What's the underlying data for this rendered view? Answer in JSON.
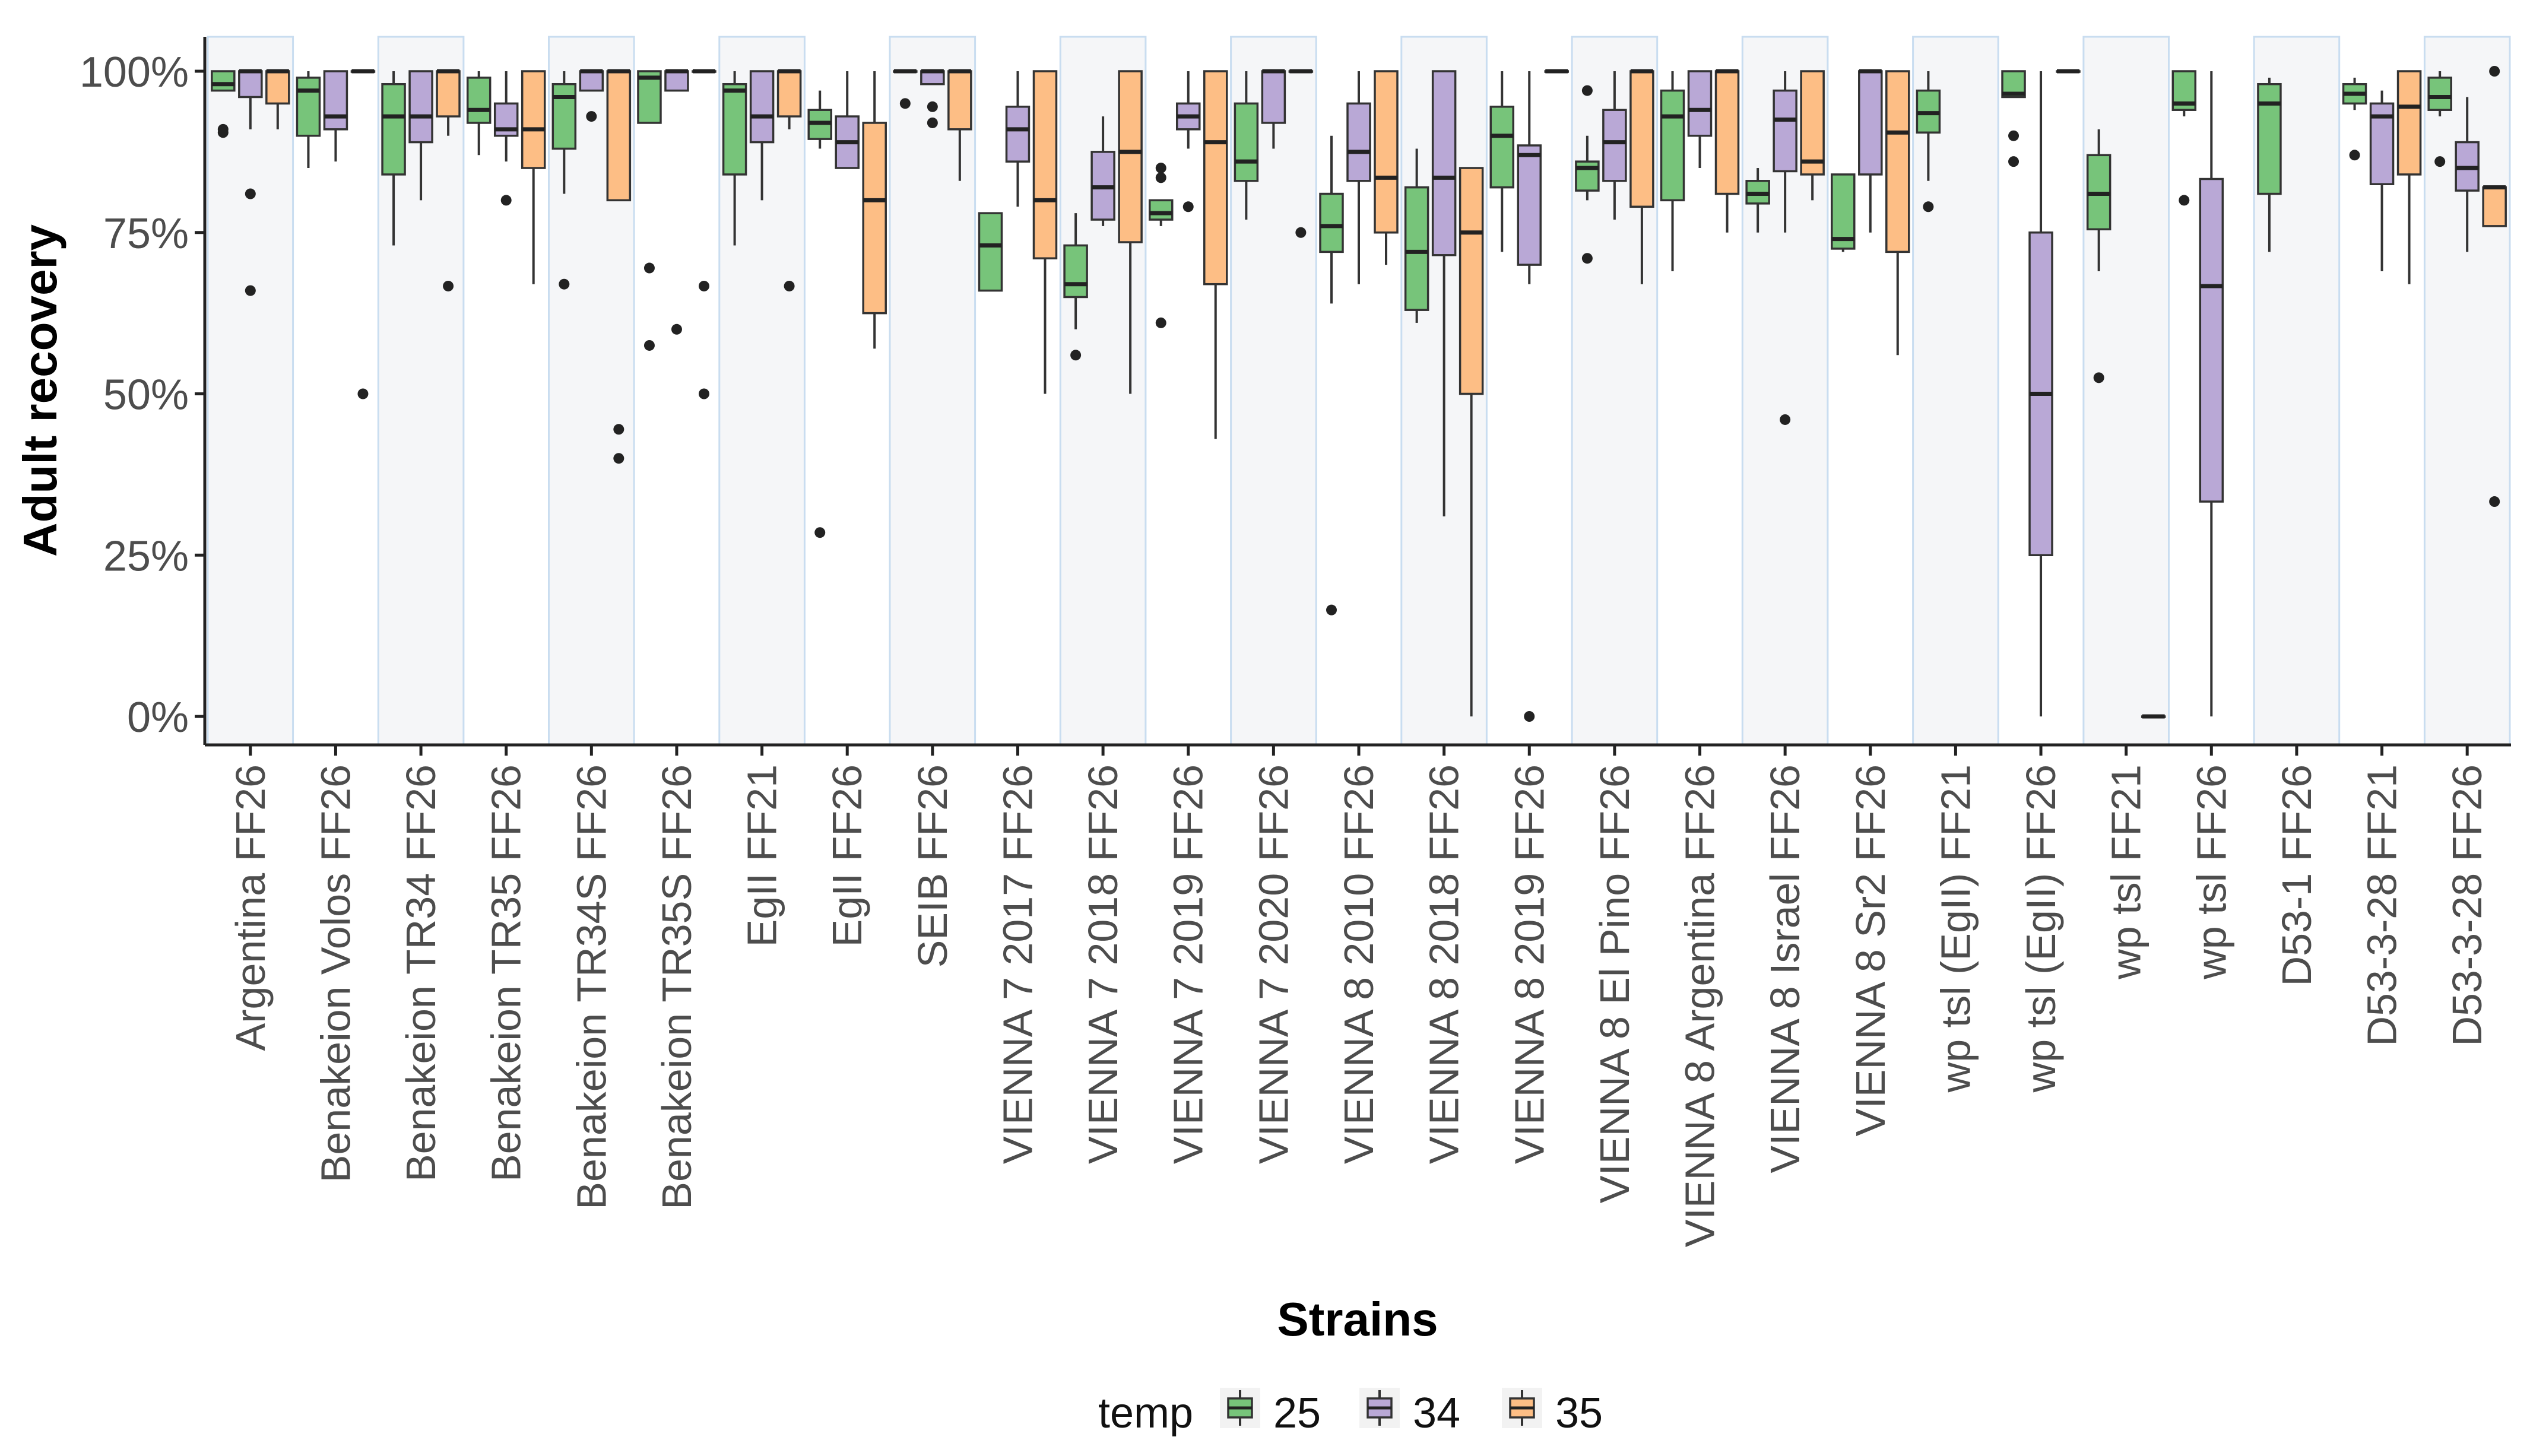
{
  "chart_data": {
    "type": "boxplot",
    "title": "",
    "xlabel": "Strains",
    "ylabel": "Adult recovery",
    "ylim": [
      0,
      100
    ],
    "y_ticks": [
      {
        "value": 0,
        "label": "0%"
      },
      {
        "value": 25,
        "label": "25%"
      },
      {
        "value": 50,
        "label": "50%"
      },
      {
        "value": 75,
        "label": "75%"
      },
      {
        "value": 100,
        "label": "100%"
      }
    ],
    "legend": {
      "title": "temp",
      "position": "bottom",
      "entries": [
        {
          "key": "25",
          "label": "25",
          "color": "#77C47A"
        },
        {
          "key": "34",
          "label": "34",
          "color": "#B9A8D6"
        },
        {
          "key": "35",
          "label": "35",
          "color": "#FDBE85"
        }
      ]
    },
    "categories": [
      {
        "label": "Argentina FF26",
        "boxes": [
          {
            "temp": "25",
            "wlo": 97,
            "q1": 97,
            "median": 98,
            "q3": 100,
            "whi": 100,
            "outliers": [
              91,
              90.5
            ]
          },
          {
            "temp": "34",
            "wlo": 91,
            "q1": 96,
            "median": 100,
            "q3": 100,
            "whi": 100,
            "outliers": [
              81,
              66
            ]
          },
          {
            "temp": "35",
            "wlo": 91,
            "q1": 95,
            "median": 100,
            "q3": 100,
            "whi": 100,
            "outliers": []
          }
        ]
      },
      {
        "label": "Benakeion Volos FF26",
        "boxes": [
          {
            "temp": "25",
            "wlo": 85,
            "q1": 90,
            "median": 97,
            "q3": 99,
            "whi": 100,
            "outliers": []
          },
          {
            "temp": "34",
            "wlo": 86,
            "q1": 91,
            "median": 93,
            "q3": 100,
            "whi": 100,
            "outliers": []
          },
          {
            "temp": "35",
            "wlo": 100,
            "q1": 100,
            "median": 100,
            "q3": 100,
            "whi": 100,
            "outliers": [
              50
            ]
          }
        ]
      },
      {
        "label": "Benakeion TR34 FF26",
        "boxes": [
          {
            "temp": "25",
            "wlo": 73,
            "q1": 84,
            "median": 93,
            "q3": 98,
            "whi": 100,
            "outliers": []
          },
          {
            "temp": "34",
            "wlo": 80,
            "q1": 89,
            "median": 93,
            "q3": 100,
            "whi": 100,
            "outliers": []
          },
          {
            "temp": "35",
            "wlo": 90,
            "q1": 93,
            "median": 100,
            "q3": 100,
            "whi": 100,
            "outliers": [
              66.7
            ]
          }
        ]
      },
      {
        "label": "Benakeion TR35 FF26",
        "boxes": [
          {
            "temp": "25",
            "wlo": 87,
            "q1": 92,
            "median": 94,
            "q3": 99,
            "whi": 100,
            "outliers": []
          },
          {
            "temp": "34",
            "wlo": 86,
            "q1": 90,
            "median": 91,
            "q3": 95,
            "whi": 100,
            "outliers": [
              80
            ]
          },
          {
            "temp": "35",
            "wlo": 67,
            "q1": 85,
            "median": 91,
            "q3": 100,
            "whi": 100,
            "outliers": []
          }
        ]
      },
      {
        "label": "Benakeion TR34S FF26",
        "boxes": [
          {
            "temp": "25",
            "wlo": 81,
            "q1": 88,
            "median": 96,
            "q3": 98,
            "whi": 100,
            "outliers": [
              67
            ]
          },
          {
            "temp": "34",
            "wlo": 97,
            "q1": 97,
            "median": 100,
            "q3": 100,
            "whi": 100,
            "outliers": [
              93
            ]
          },
          {
            "temp": "35",
            "wlo": 80,
            "q1": 80,
            "median": 100,
            "q3": 100,
            "whi": 100,
            "outliers": [
              44.5,
              40
            ]
          }
        ]
      },
      {
        "label": "Benakeion TR35S FF26",
        "boxes": [
          {
            "temp": "25",
            "wlo": 92,
            "q1": 92,
            "median": 99,
            "q3": 100,
            "whi": 100,
            "outliers": [
              69.5,
              57.5
            ]
          },
          {
            "temp": "34",
            "wlo": 97,
            "q1": 97,
            "median": 100,
            "q3": 100,
            "whi": 100,
            "outliers": [
              60
            ]
          },
          {
            "temp": "35",
            "wlo": 100,
            "q1": 100,
            "median": 100,
            "q3": 100,
            "whi": 100,
            "outliers": [
              66.7,
              50
            ]
          }
        ]
      },
      {
        "label": "EgII FF21",
        "boxes": [
          {
            "temp": "25",
            "wlo": 73,
            "q1": 84,
            "median": 97,
            "q3": 98,
            "whi": 100,
            "outliers": []
          },
          {
            "temp": "34",
            "wlo": 80,
            "q1": 89,
            "median": 93,
            "q3": 100,
            "whi": 100,
            "outliers": []
          },
          {
            "temp": "35",
            "wlo": 91,
            "q1": 93,
            "median": 100,
            "q3": 100,
            "whi": 100,
            "outliers": [
              66.7
            ]
          }
        ]
      },
      {
        "label": "EgII FF26",
        "boxes": [
          {
            "temp": "25",
            "wlo": 88,
            "q1": 89.5,
            "median": 92,
            "q3": 94,
            "whi": 97,
            "outliers": [
              28.5
            ]
          },
          {
            "temp": "34",
            "wlo": 85,
            "q1": 85,
            "median": 89,
            "q3": 93,
            "whi": 100,
            "outliers": []
          },
          {
            "temp": "35",
            "wlo": 57,
            "q1": 62.5,
            "median": 80,
            "q3": 92,
            "whi": 100,
            "outliers": []
          }
        ]
      },
      {
        "label": "SEIB FF26",
        "boxes": [
          {
            "temp": "25",
            "wlo": 100,
            "q1": 100,
            "median": 100,
            "q3": 100,
            "whi": 100,
            "outliers": [
              95
            ]
          },
          {
            "temp": "34",
            "wlo": 98,
            "q1": 98,
            "median": 100,
            "q3": 100,
            "whi": 100,
            "outliers": [
              94.5,
              92
            ]
          },
          {
            "temp": "35",
            "wlo": 83,
            "q1": 91,
            "median": 100,
            "q3": 100,
            "whi": 100,
            "outliers": []
          }
        ]
      },
      {
        "label": "VIENNA 7 2017 FF26",
        "boxes": [
          {
            "temp": "25",
            "wlo": 66,
            "q1": 66,
            "median": 73,
            "q3": 78,
            "whi": 78,
            "outliers": []
          },
          {
            "temp": "34",
            "wlo": 79,
            "q1": 86,
            "median": 91,
            "q3": 94.5,
            "whi": 100,
            "outliers": []
          },
          {
            "temp": "35",
            "wlo": 50,
            "q1": 71,
            "median": 80,
            "q3": 100,
            "whi": 100,
            "outliers": []
          }
        ]
      },
      {
        "label": "VIENNA 7 2018 FF26",
        "boxes": [
          {
            "temp": "25",
            "wlo": 60,
            "q1": 65,
            "median": 67,
            "q3": 73,
            "whi": 78,
            "outliers": [
              56
            ]
          },
          {
            "temp": "34",
            "wlo": 76,
            "q1": 77,
            "median": 82,
            "q3": 87.5,
            "whi": 93,
            "outliers": []
          },
          {
            "temp": "35",
            "wlo": 50,
            "q1": 73.5,
            "median": 87.5,
            "q3": 100,
            "whi": 100,
            "outliers": []
          }
        ]
      },
      {
        "label": "VIENNA 7 2019 FF26",
        "boxes": [
          {
            "temp": "25",
            "wlo": 76,
            "q1": 77,
            "median": 78,
            "q3": 80,
            "whi": 80,
            "outliers": [
              85,
              83.5,
              61
            ]
          },
          {
            "temp": "34",
            "wlo": 88,
            "q1": 91,
            "median": 93,
            "q3": 95,
            "whi": 100,
            "outliers": [
              79
            ]
          },
          {
            "temp": "35",
            "wlo": 43,
            "q1": 67,
            "median": 89,
            "q3": 100,
            "whi": 100,
            "outliers": []
          }
        ]
      },
      {
        "label": "VIENNA 7 2020 FF26",
        "boxes": [
          {
            "temp": "25",
            "wlo": 77,
            "q1": 83,
            "median": 86,
            "q3": 95,
            "whi": 100,
            "outliers": []
          },
          {
            "temp": "34",
            "wlo": 88,
            "q1": 92,
            "median": 100,
            "q3": 100,
            "whi": 100,
            "outliers": []
          },
          {
            "temp": "35",
            "wlo": 100,
            "q1": 100,
            "median": 100,
            "q3": 100,
            "whi": 100,
            "outliers": [
              75
            ]
          }
        ]
      },
      {
        "label": "VIENNA 8 2010 FF26",
        "boxes": [
          {
            "temp": "25",
            "wlo": 64,
            "q1": 72,
            "median": 76,
            "q3": 81,
            "whi": 90,
            "outliers": [
              16.5
            ]
          },
          {
            "temp": "34",
            "wlo": 67,
            "q1": 83,
            "median": 87.5,
            "q3": 95,
            "whi": 100,
            "outliers": []
          },
          {
            "temp": "35",
            "wlo": 70,
            "q1": 75,
            "median": 83.5,
            "q3": 100,
            "whi": 100,
            "outliers": []
          }
        ]
      },
      {
        "label": "VIENNA 8 2018 FF26",
        "boxes": [
          {
            "temp": "25",
            "wlo": 61,
            "q1": 63,
            "median": 72,
            "q3": 82,
            "whi": 88,
            "outliers": []
          },
          {
            "temp": "34",
            "wlo": 31,
            "q1": 71.5,
            "median": 83.5,
            "q3": 100,
            "whi": 100,
            "outliers": []
          },
          {
            "temp": "35",
            "wlo": 0,
            "q1": 50,
            "median": 75,
            "q3": 85,
            "whi": 85,
            "outliers": []
          }
        ]
      },
      {
        "label": "VIENNA 8 2019 FF26",
        "boxes": [
          {
            "temp": "25",
            "wlo": 72,
            "q1": 82,
            "median": 90,
            "q3": 94.5,
            "whi": 100,
            "outliers": []
          },
          {
            "temp": "34",
            "wlo": 67,
            "q1": 70,
            "median": 87,
            "q3": 88.5,
            "whi": 100,
            "outliers": [
              0
            ]
          },
          {
            "temp": "35",
            "wlo": 100,
            "q1": 100,
            "median": 100,
            "q3": 100,
            "whi": 100,
            "outliers": []
          }
        ]
      },
      {
        "label": "VIENNA 8 El Pino FF26",
        "boxes": [
          {
            "temp": "25",
            "wlo": 80,
            "q1": 81.5,
            "median": 85,
            "q3": 86,
            "whi": 90,
            "outliers": [
              97,
              71
            ]
          },
          {
            "temp": "34",
            "wlo": 77,
            "q1": 83,
            "median": 89,
            "q3": 94,
            "whi": 100,
            "outliers": []
          },
          {
            "temp": "35",
            "wlo": 67,
            "q1": 79,
            "median": 100,
            "q3": 100,
            "whi": 100,
            "outliers": []
          }
        ]
      },
      {
        "label": "VIENNA 8 Argentina FF26",
        "boxes": [
          {
            "temp": "25",
            "wlo": 69,
            "q1": 80,
            "median": 93,
            "q3": 97,
            "whi": 100,
            "outliers": []
          },
          {
            "temp": "34",
            "wlo": 85,
            "q1": 90,
            "median": 94,
            "q3": 100,
            "whi": 100,
            "outliers": []
          },
          {
            "temp": "35",
            "wlo": 75,
            "q1": 81,
            "median": 100,
            "q3": 100,
            "whi": 100,
            "outliers": []
          }
        ]
      },
      {
        "label": "VIENNA 8 Israel FF26",
        "boxes": [
          {
            "temp": "25",
            "wlo": 75,
            "q1": 79.5,
            "median": 81,
            "q3": 83,
            "whi": 85,
            "outliers": []
          },
          {
            "temp": "34",
            "wlo": 75,
            "q1": 84.5,
            "median": 92.5,
            "q3": 97,
            "whi": 100,
            "outliers": [
              46
            ]
          },
          {
            "temp": "35",
            "wlo": 80,
            "q1": 84,
            "median": 86,
            "q3": 100,
            "whi": 100,
            "outliers": []
          }
        ]
      },
      {
        "label": "VIENNA 8 Sr2 FF26",
        "boxes": [
          {
            "temp": "25",
            "wlo": 72,
            "q1": 72.5,
            "median": 74,
            "q3": 84,
            "whi": 84,
            "outliers": []
          },
          {
            "temp": "34",
            "wlo": 75,
            "q1": 84,
            "median": 100,
            "q3": 100,
            "whi": 100,
            "outliers": []
          },
          {
            "temp": "35",
            "wlo": 56,
            "q1": 72,
            "median": 90.5,
            "q3": 100,
            "whi": 100,
            "outliers": []
          }
        ]
      },
      {
        "label": "wp tsl (EgII) FF21",
        "boxes": [
          {
            "temp": "25",
            "wlo": 83,
            "q1": 90.5,
            "median": 93.5,
            "q3": 97,
            "whi": 100,
            "outliers": [
              79
            ]
          }
        ]
      },
      {
        "label": "wp tsl (EgII) FF26",
        "boxes": [
          {
            "temp": "25",
            "wlo": 96,
            "q1": 96,
            "median": 96.5,
            "q3": 100,
            "whi": 100,
            "outliers": [
              90,
              86
            ]
          },
          {
            "temp": "34",
            "wlo": 0,
            "q1": 25,
            "median": 50,
            "q3": 75,
            "whi": 100,
            "outliers": []
          },
          {
            "temp": "35",
            "wlo": 100,
            "q1": 100,
            "median": 100,
            "q3": 100,
            "whi": 100,
            "outliers": []
          }
        ]
      },
      {
        "label": "wp tsl FF21",
        "boxes": [
          {
            "temp": "25",
            "wlo": 69,
            "q1": 75.5,
            "median": 81,
            "q3": 87,
            "whi": 91,
            "outliers": [
              52.5
            ]
          },
          {
            "temp": "35",
            "wlo": 0,
            "q1": 0,
            "median": 0,
            "q3": 0,
            "whi": 0,
            "outliers": []
          }
        ]
      },
      {
        "label": "wp tsl FF26",
        "boxes": [
          {
            "temp": "25",
            "wlo": 93,
            "q1": 94,
            "median": 95,
            "q3": 100,
            "whi": 100,
            "outliers": [
              80
            ]
          },
          {
            "temp": "34",
            "wlo": 0,
            "q1": 33.3,
            "median": 66.7,
            "q3": 83.3,
            "whi": 100,
            "outliers": []
          }
        ]
      },
      {
        "label": "D53-1 FF26",
        "boxes": [
          {
            "temp": "25",
            "wlo": 72,
            "q1": 81,
            "median": 95,
            "q3": 98,
            "whi": 99,
            "outliers": []
          }
        ]
      },
      {
        "label": "D53-3-28 FF21",
        "boxes": [
          {
            "temp": "25",
            "wlo": 94,
            "q1": 95,
            "median": 96.5,
            "q3": 98,
            "whi": 99,
            "outliers": [
              87
            ]
          },
          {
            "temp": "34",
            "wlo": 69,
            "q1": 82.5,
            "median": 93,
            "q3": 95,
            "whi": 97,
            "outliers": []
          },
          {
            "temp": "35",
            "wlo": 67,
            "q1": 84,
            "median": 94.5,
            "q3": 100,
            "whi": 100,
            "outliers": []
          }
        ]
      },
      {
        "label": "D53-3-28 FF26",
        "boxes": [
          {
            "temp": "25",
            "wlo": 93,
            "q1": 94,
            "median": 96,
            "q3": 99,
            "whi": 100,
            "outliers": [
              86
            ]
          },
          {
            "temp": "34",
            "wlo": 72,
            "q1": 81.5,
            "median": 85,
            "q3": 89,
            "whi": 96,
            "outliers": []
          },
          {
            "temp": "35",
            "wlo": 76,
            "q1": 76,
            "median": 82,
            "q3": 82,
            "whi": 82,
            "outliers": [
              100,
              33.3
            ]
          }
        ]
      }
    ]
  }
}
